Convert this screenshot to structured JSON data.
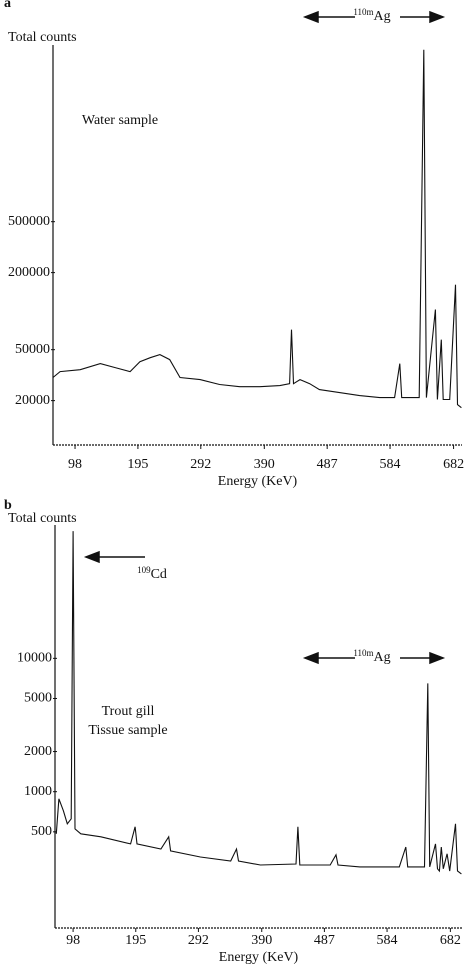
{
  "chart_data": [
    {
      "type": "line",
      "panel_label": "a",
      "ylabel": "Total counts",
      "xlabel": "Energy (KeV)",
      "yscale": "log",
      "xlim": [
        64,
        695
      ],
      "ylim": [
        9000,
        12000000
      ],
      "xticks": [
        98,
        195,
        292,
        390,
        487,
        584,
        682
      ],
      "yticks": [
        20000,
        50000,
        200000,
        500000
      ],
      "color": "#111111",
      "annotations": [
        {
          "text": "Water sample"
        },
        {
          "superscript": "110m",
          "text": "Ag"
        }
      ],
      "x": [
        64,
        75,
        106,
        137,
        160,
        183,
        198,
        214,
        229,
        244,
        260,
        291,
        321,
        352,
        383,
        414,
        429,
        432,
        435,
        445,
        460,
        475,
        506,
        537,
        568,
        591,
        599,
        602,
        629,
        636,
        640,
        654,
        657,
        663,
        666,
        676,
        685,
        688,
        694
      ],
      "values": [
        30300,
        33700,
        34900,
        38900,
        36200,
        33700,
        40300,
        43300,
        45800,
        41800,
        30300,
        29200,
        26700,
        25700,
        25700,
        26200,
        27100,
        71700,
        27100,
        29200,
        27100,
        24400,
        23100,
        21900,
        21100,
        21100,
        38900,
        21100,
        21100,
        11000000,
        21100,
        103000,
        20400,
        59900,
        20400,
        20400,
        161000,
        18600,
        17600
      ]
    },
    {
      "type": "line",
      "panel_label": "b",
      "ylabel": "Total counts",
      "xlabel": "Energy (KeV)",
      "yscale": "log",
      "xlim": [
        70,
        700
      ],
      "ylim": [
        95,
        100000
      ],
      "xticks": [
        98,
        195,
        292,
        390,
        487,
        584,
        682
      ],
      "yticks": [
        500,
        1000,
        2000,
        5000,
        10000
      ],
      "color": "#111111",
      "annotations": [
        {
          "superscript": "109",
          "text": "Cd"
        },
        {
          "superscript": "110m",
          "text": "Ag"
        },
        {
          "text": "Trout gill"
        },
        {
          "text": "Tissue sample"
        }
      ],
      "x": [
        72,
        76,
        83,
        89,
        95,
        98,
        101,
        110,
        141,
        187,
        194,
        197,
        234,
        246,
        249,
        295,
        342,
        351,
        354,
        388,
        443,
        446,
        449,
        496,
        505,
        508,
        542,
        603,
        613,
        616,
        642,
        647,
        650,
        659,
        662,
        665,
        668,
        671,
        677,
        681,
        690,
        693,
        699
      ],
      "values": [
        483,
        885,
        719,
        574,
        626,
        90000,
        526,
        483,
        459,
        406,
        545,
        406,
        372,
        459,
        360,
        324,
        302,
        372,
        302,
        282,
        287,
        545,
        282,
        282,
        336,
        282,
        273,
        273,
        385,
        273,
        273,
        6490,
        273,
        406,
        264,
        254,
        385,
        264,
        342,
        254,
        574,
        254,
        242
      ]
    }
  ]
}
